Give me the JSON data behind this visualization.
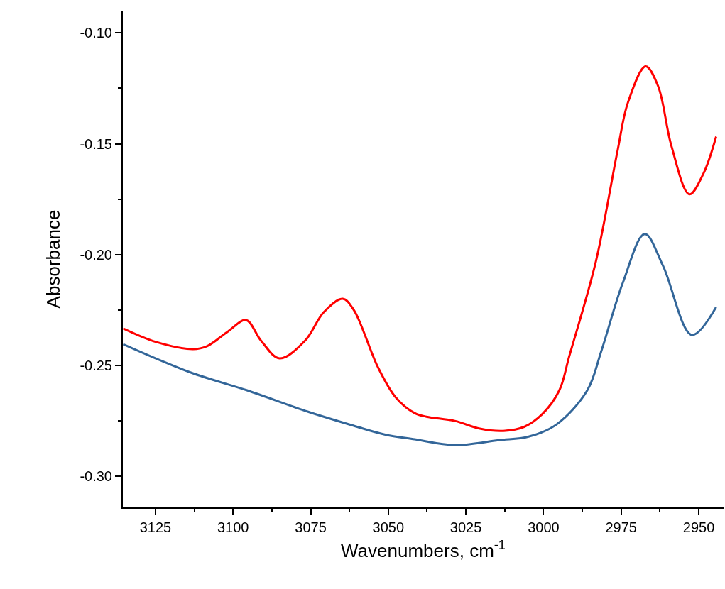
{
  "chart_data": {
    "type": "line",
    "xlabel": "Wavenumbers, cm$^{-1}$",
    "ylabel": "Absorbance",
    "xlim": [
      3135.5,
      2942
    ],
    "ylim": [
      -0.314,
      -0.09
    ],
    "xticks": [
      3125,
      3100,
      3075,
      3050,
      3025,
      3000,
      2975,
      2950,
      {
        "value": 3112.5,
        "label": null
      },
      {
        "value": 3087.5,
        "label": null
      },
      {
        "value": 3062.5,
        "label": null
      },
      {
        "value": 3037.5,
        "label": null
      },
      {
        "value": 3012.5,
        "label": null
      },
      {
        "value": 2987.5,
        "label": null
      },
      {
        "value": 2962.5,
        "label": null
      }
    ],
    "yticks": [
      {
        "value": -0.1,
        "label": "-0.10"
      },
      -0.15,
      {
        "value": -0.2,
        "label": "-0.20"
      },
      -0.25,
      {
        "value": -0.3,
        "label": "-0.30"
      },
      {
        "value": -0.125,
        "label": null
      },
      {
        "value": -0.175,
        "label": null
      },
      {
        "value": -0.225,
        "label": null
      },
      {
        "value": -0.275,
        "label": null
      }
    ],
    "line_style": "solid",
    "marker": "none",
    "series": [
      {
        "color": "#ff0000",
        "x": [
          3135.4,
          3124.8,
          3112.9,
          3108.4,
          3101.6,
          3095.8,
          3091.0,
          3085.0,
          3076.8,
          3070.8,
          3064.7,
          3061.1,
          3053.4,
          3047.6,
          3041.5,
          3037.7,
          3028.6,
          3020.5,
          3012.9,
          3006.1,
          3000.3,
          2994.9,
          2991.7,
          2983.1,
          2976.2,
          2972.8,
          2967.1,
          2963.1,
          2958.8,
          2953.0,
          2948.5,
          2944.4
        ],
        "values": [
          -0.2333,
          -0.2394,
          -0.2426,
          -0.2413,
          -0.2346,
          -0.2295,
          -0.2388,
          -0.2468,
          -0.2388,
          -0.226,
          -0.2199,
          -0.225,
          -0.2506,
          -0.2644,
          -0.2715,
          -0.2731,
          -0.275,
          -0.2785,
          -0.2795,
          -0.2776,
          -0.2718,
          -0.2612,
          -0.2458,
          -0.2029,
          -0.1535,
          -0.1314,
          -0.1151,
          -0.124,
          -0.151,
          -0.1728,
          -0.1635,
          -0.1468
        ]
      },
      {
        "color": "#336699",
        "x": [
          3135.4,
          3113.6,
          3095.5,
          3076.0,
          3061.1,
          3051.2,
          3041.5,
          3028.6,
          3014.5,
          3004.8,
          2995.8,
          2985.9,
          2981.4,
          2974.4,
          2967.4,
          2961.5,
          2952.2,
          2944.4
        ],
        "values": [
          -0.2404,
          -0.2532,
          -0.2612,
          -0.2708,
          -0.2772,
          -0.2811,
          -0.2833,
          -0.2859,
          -0.2837,
          -0.2821,
          -0.2766,
          -0.2612,
          -0.2436,
          -0.2125,
          -0.1907,
          -0.2051,
          -0.2362,
          -0.2237
        ]
      }
    ]
  }
}
